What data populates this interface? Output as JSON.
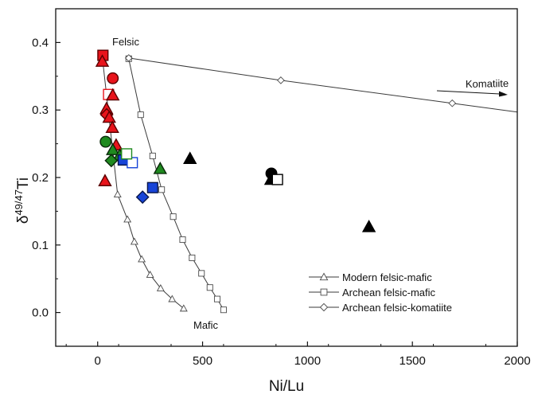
{
  "chart_data": {
    "type": "scatter",
    "title": "",
    "xlabel": "Ni/Lu",
    "ylabel_main": "δ",
    "ylabel_sup": "49/47",
    "ylabel_tail": "Ti",
    "xlim": [
      -200,
      2000
    ],
    "ylim": [
      -0.05,
      0.45
    ],
    "xticks": [
      0,
      500,
      1000,
      1500,
      2000
    ],
    "yticks": [
      0.0,
      0.1,
      0.2,
      0.3,
      0.4
    ],
    "xtick_labels": [
      "0",
      "500",
      "1000",
      "1500",
      "2000"
    ],
    "ytick_labels": [
      "0.0",
      "0.1",
      "0.2",
      "0.3",
      "0.4"
    ],
    "grid": false,
    "legend_position": "bottom-right",
    "annotations": {
      "felsic": {
        "text": "Felsic",
        "x": 155,
        "y": 0.385
      },
      "mafic": {
        "text": "Mafic",
        "x": 460,
        "y": -0.025
      },
      "komatiite": {
        "text": "Komatiite",
        "x": 1800,
        "y": 0.325
      }
    },
    "arrow": {
      "from": [
        1625,
        0.328
      ],
      "to": [
        1960,
        0.322
      ]
    },
    "model_curves": [
      {
        "name": "Modern felsic-mafic",
        "marker": "triangle",
        "points": [
          [
            23,
            0.376
          ],
          [
            95,
            0.175
          ],
          [
            142,
            0.138
          ],
          [
            175,
            0.105
          ],
          [
            210,
            0.079
          ],
          [
            250,
            0.056
          ],
          [
            300,
            0.036
          ],
          [
            355,
            0.02
          ],
          [
            410,
            0.006
          ]
        ]
      },
      {
        "name": "Archean felsic-mafic",
        "marker": "square",
        "points": [
          [
            148,
            0.376
          ],
          [
            205,
            0.293
          ],
          [
            262,
            0.232
          ],
          [
            305,
            0.182
          ],
          [
            360,
            0.142
          ],
          [
            405,
            0.108
          ],
          [
            450,
            0.081
          ],
          [
            495,
            0.058
          ],
          [
            535,
            0.037
          ],
          [
            570,
            0.02
          ],
          [
            600,
            0.004
          ]
        ]
      },
      {
        "name": "Archean felsic-komatiite",
        "marker": "diamond",
        "points": [
          [
            148,
            0.377
          ],
          [
            873,
            0.344
          ],
          [
            1690,
            0.31
          ],
          [
            2000,
            0.297
          ]
        ]
      }
    ],
    "samples": [
      {
        "marker": "square",
        "fill": "#e8141b",
        "stroke": "#5a0000",
        "x": 25,
        "y": 0.381
      },
      {
        "marker": "triangle",
        "fill": "#e8141b",
        "stroke": "#5a0000",
        "x": 22,
        "y": 0.372
      },
      {
        "marker": "circle",
        "fill": "#e8141b",
        "stroke": "#5a0000",
        "x": 72,
        "y": 0.347
      },
      {
        "marker": "square",
        "fill": "#ffffff",
        "stroke": "#e8141b",
        "x": 52,
        "y": 0.323
      },
      {
        "marker": "triangle",
        "fill": "#e8141b",
        "stroke": "#5a0000",
        "x": 72,
        "y": 0.322
      },
      {
        "marker": "triangle",
        "fill": "#e8141b",
        "stroke": "#5a0000",
        "x": 42,
        "y": 0.302
      },
      {
        "marker": "diamond",
        "fill": "#e8141b",
        "stroke": "#5a0000",
        "x": 43,
        "y": 0.293
      },
      {
        "marker": "triangle",
        "fill": "#e8141b",
        "stroke": "#5a0000",
        "x": 55,
        "y": 0.289
      },
      {
        "marker": "triangle",
        "fill": "#e8141b",
        "stroke": "#5a0000",
        "x": 70,
        "y": 0.274
      },
      {
        "marker": "circle",
        "fill": "#1f8a1f",
        "stroke": "#0a2a0a",
        "x": 38,
        "y": 0.253
      },
      {
        "marker": "triangle",
        "fill": "#e8141b",
        "stroke": "#5a0000",
        "x": 88,
        "y": 0.248
      },
      {
        "marker": "triangle",
        "fill": "#1f8a1f",
        "stroke": "#0a2a0a",
        "x": 72,
        "y": 0.241
      },
      {
        "marker": "triangle",
        "fill": "#1f8a1f",
        "stroke": "#0a2a0a",
        "x": 105,
        "y": 0.233
      },
      {
        "marker": "diamond",
        "fill": "#1f8a1f",
        "stroke": "#0a2a0a",
        "x": 65,
        "y": 0.225
      },
      {
        "marker": "square",
        "fill": "#1744d8",
        "stroke": "#08164a",
        "x": 122,
        "y": 0.226
      },
      {
        "marker": "square",
        "fill": "#ffffff",
        "stroke": "#1744d8",
        "x": 165,
        "y": 0.222
      },
      {
        "marker": "square",
        "fill": "#ffffff",
        "stroke": "#1f8a1f",
        "x": 138,
        "y": 0.235
      },
      {
        "marker": "triangle",
        "fill": "#e8141b",
        "stroke": "#5a0000",
        "x": 35,
        "y": 0.195
      },
      {
        "marker": "triangle",
        "fill": "#1f8a1f",
        "stroke": "#0a2a0a",
        "x": 298,
        "y": 0.213
      },
      {
        "marker": "square",
        "fill": "#1744d8",
        "stroke": "#08164a",
        "x": 262,
        "y": 0.185
      },
      {
        "marker": "diamond",
        "fill": "#1744d8",
        "stroke": "#08164a",
        "x": 214,
        "y": 0.171
      },
      {
        "marker": "triangle",
        "fill": "#000000",
        "stroke": "#000000",
        "x": 440,
        "y": 0.228
      },
      {
        "marker": "circle",
        "fill": "#000000",
        "stroke": "#000000",
        "x": 828,
        "y": 0.206
      },
      {
        "marker": "triangle",
        "fill": "#000000",
        "stroke": "#000000",
        "x": 826,
        "y": 0.197
      },
      {
        "marker": "square",
        "fill": "#ffffff",
        "stroke": "#000000",
        "x": 857,
        "y": 0.197
      },
      {
        "marker": "triangle",
        "fill": "#000000",
        "stroke": "#000000",
        "x": 1293,
        "y": 0.127
      }
    ]
  }
}
